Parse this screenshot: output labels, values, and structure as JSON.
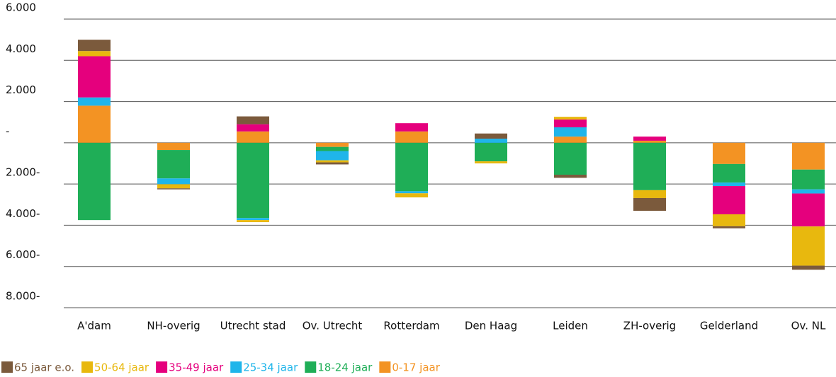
{
  "chart_data": {
    "type": "bar",
    "stacked": true,
    "categories": [
      "A'dam",
      "NH-overig",
      "Utrecht stad",
      "Ov. Utrecht",
      "Rotterdam",
      "Den Haag",
      "Leiden",
      "ZH-overig",
      "Gelderland",
      "Ov. NL"
    ],
    "series": [
      {
        "name": "65 jaar e.o.",
        "color": "#7b5a3c",
        "values": [
          550,
          -50,
          380,
          -100,
          0,
          250,
          -150,
          -620,
          -100,
          -200
        ]
      },
      {
        "name": "50-64 jaar",
        "color": "#e8b80e",
        "values": [
          250,
          -200,
          -100,
          -100,
          -200,
          -100,
          130,
          -380,
          -580,
          -1900
        ]
      },
      {
        "name": "35-49 jaar",
        "color": "#e5007d",
        "values": [
          2000,
          0,
          350,
          0,
          400,
          0,
          380,
          200,
          -1370,
          -1600
        ]
      },
      {
        "name": "25-34 jaar",
        "color": "#1fb5ea",
        "values": [
          400,
          -280,
          -100,
          -450,
          -100,
          200,
          450,
          0,
          -170,
          -200
        ]
      },
      {
        "name": "18-24 jaar",
        "color": "#1fae57",
        "values": [
          -3750,
          -1380,
          -3650,
          -200,
          -2350,
          -900,
          -1550,
          -2300,
          -900,
          -960
        ]
      },
      {
        "name": "0-17 jaar",
        "color": "#f39323",
        "values": [
          1800,
          -350,
          550,
          -200,
          550,
          0,
          300,
          100,
          -1030,
          -1300
        ]
      }
    ],
    "ylim": [
      -8000,
      6000
    ],
    "yticks": [
      {
        "value": 6000,
        "label": "6.000"
      },
      {
        "value": 4000,
        "label": "4.000"
      },
      {
        "value": 2000,
        "label": "2.000"
      },
      {
        "value": 0,
        "label": "-"
      },
      {
        "value": -2000,
        "label": "2.000-"
      },
      {
        "value": -4000,
        "label": "4.000-"
      },
      {
        "value": -6000,
        "label": "6.000-"
      },
      {
        "value": -8000,
        "label": "8.000-"
      }
    ],
    "grid": true
  }
}
